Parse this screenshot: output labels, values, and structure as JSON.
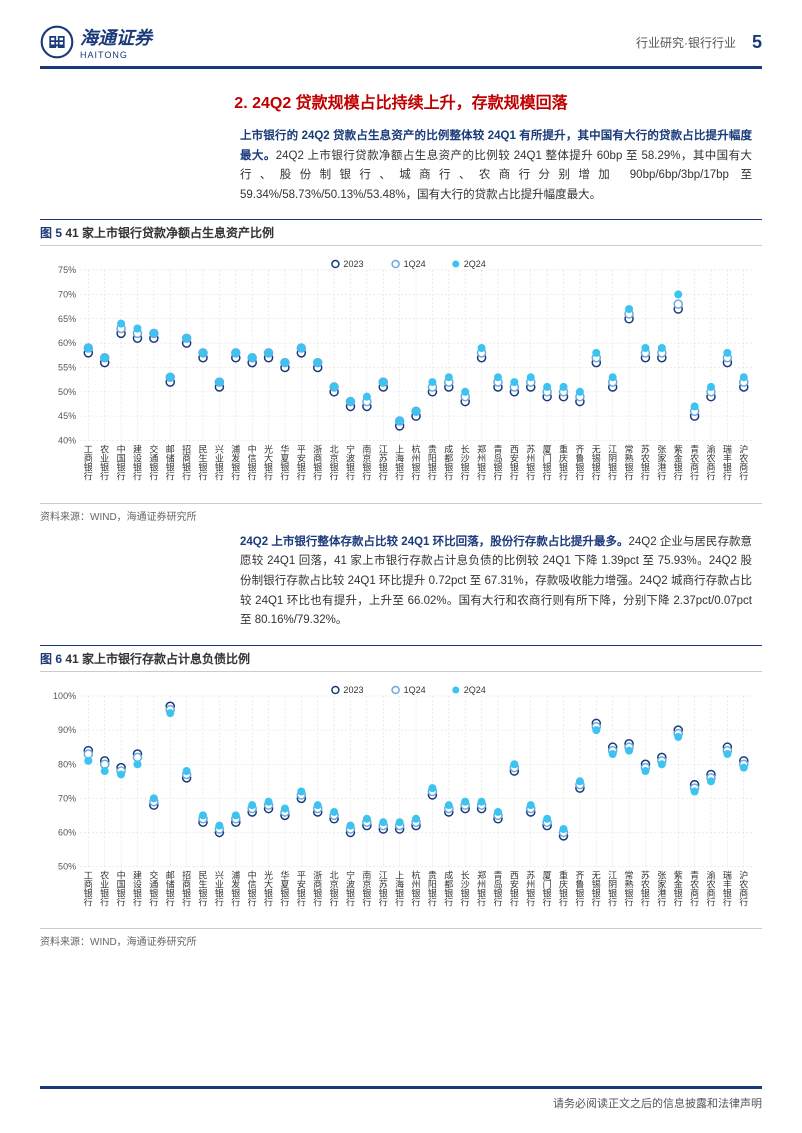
{
  "header": {
    "company_cn": "海通证券",
    "company_en": "HAITONG",
    "meta": "行业研究·银行行业",
    "page_number": "5"
  },
  "section_title": "2. 24Q2 贷款规模占比持续上升，存款规模回落",
  "para1": {
    "lead": "上市银行的 24Q2 贷款占生息资产的比例整体较 24Q1 有所提升，其中国有大行的贷款占比提升幅度最大。",
    "rest": "24Q2 上市银行贷款净额占生息资产的比例较 24Q1 整体提升 60bp 至 58.29%，其中国有大行、股份制银行、城商行、农商行分别增加 90bp/6bp/3bp/17bp 至 59.34%/58.73%/50.13%/53.48%，国有大行的贷款占比提升幅度最大。"
  },
  "para2": {
    "lead": "24Q2 上市银行整体存款占比较 24Q1 环比回落，股份行存款占比提升最多。",
    "rest": "24Q2 企业与居民存款意愿较 24Q1 回落，41 家上市银行存款占计息负债的比例较 24Q1 下降 1.39pct 至 75.93%。24Q2 股份制银行存款占比较 24Q1 环比提升 0.72pct 至 67.31%，存款吸收能力增强。24Q2 城商行存款占比较 24Q1 环比也有提升，上升至 66.02%。国有大行和农商行则有所下降，分别下降 2.37pct/0.07pct 至 80.16%/79.32%。"
  },
  "chart5": {
    "title_prefix": "图 5",
    "title": "41 家上市银行贷款净额占生息资产比例",
    "source": "资料来源：WIND，海通证券研究所",
    "type": "scatter",
    "legend": [
      "2023",
      "1Q24",
      "2Q24"
    ],
    "series_colors": {
      "2023": "#1a3a7a",
      "1Q24": "#6aa9e0",
      "2Q24": "#3dc3f0"
    },
    "marker_style": {
      "2023": "circle-open",
      "1Q24": "circle-open",
      "2Q24": "circle"
    },
    "marker_size": 4,
    "ylim": [
      40,
      75
    ],
    "ytick_step": 5,
    "ytick_format": "percent",
    "grid_color": "#d9d9d9",
    "background_color": "#ffffff",
    "axis_font_size": 9,
    "x_label_orientation": "vertical",
    "categories": [
      "工商银行",
      "农业银行",
      "中国银行",
      "建设银行",
      "交通银行",
      "邮储银行",
      "招商银行",
      "民生银行",
      "兴业银行",
      "浦发银行",
      "中信银行",
      "光大银行",
      "华夏银行",
      "平安银行",
      "浙商银行",
      "北京银行",
      "宁波银行",
      "南京银行",
      "江苏银行",
      "上海银行",
      "杭州银行",
      "贵阳银行",
      "成都银行",
      "长沙银行",
      "郑州银行",
      "青岛银行",
      "西安银行",
      "苏州银行",
      "厦门银行",
      "重庆银行",
      "齐鲁银行",
      "无锡银行",
      "江阴银行",
      "常熟银行",
      "苏农银行",
      "张家港行",
      "紫金银行",
      "青农商行",
      "渝农商行",
      "瑞丰银行",
      "沪农商行"
    ],
    "data_2023": [
      58,
      56,
      62,
      61,
      61,
      52,
      60,
      57,
      51,
      57,
      56,
      57,
      55,
      58,
      55,
      50,
      47,
      47,
      51,
      43,
      45,
      50,
      51,
      48,
      57,
      51,
      50,
      51,
      49,
      49,
      48,
      56,
      51,
      65,
      57,
      57,
      67,
      45,
      49,
      56,
      51
    ],
    "data_1Q24": [
      59,
      57,
      63,
      62,
      62,
      53,
      61,
      58,
      52,
      58,
      57,
      58,
      56,
      59,
      56,
      51,
      48,
      48,
      52,
      44,
      46,
      51,
      52,
      49,
      58,
      52,
      51,
      52,
      50,
      50,
      49,
      57,
      52,
      66,
      58,
      58,
      68,
      46,
      50,
      57,
      52
    ],
    "data_2Q24": [
      59,
      57,
      64,
      63,
      62,
      53,
      61,
      58,
      52,
      58,
      57,
      58,
      56,
      59,
      56,
      51,
      48,
      49,
      52,
      44,
      46,
      52,
      53,
      50,
      59,
      53,
      52,
      53,
      51,
      51,
      50,
      58,
      53,
      67,
      59,
      59,
      70,
      47,
      51,
      58,
      53
    ]
  },
  "chart6": {
    "title_prefix": "图 6",
    "title": "41 家上市银行存款占计息负债比例",
    "source": "资料来源：WIND，海通证券研究所",
    "type": "scatter",
    "legend": [
      "2023",
      "1Q24",
      "2Q24"
    ],
    "series_colors": {
      "2023": "#1a3a7a",
      "1Q24": "#6aa9e0",
      "2Q24": "#3dc3f0"
    },
    "marker_style": {
      "2023": "circle-open",
      "1Q24": "circle-open",
      "2Q24": "circle"
    },
    "marker_size": 4,
    "ylim": [
      50,
      100
    ],
    "ytick_step": 10,
    "ytick_format": "percent",
    "grid_color": "#d9d9d9",
    "background_color": "#ffffff",
    "axis_font_size": 9,
    "x_label_orientation": "vertical",
    "categories": [
      "工商银行",
      "农业银行",
      "中国银行",
      "建设银行",
      "交通银行",
      "邮储银行",
      "招商银行",
      "民生银行",
      "兴业银行",
      "浦发银行",
      "中信银行",
      "光大银行",
      "华夏银行",
      "平安银行",
      "浙商银行",
      "北京银行",
      "宁波银行",
      "南京银行",
      "江苏银行",
      "上海银行",
      "杭州银行",
      "贵阳银行",
      "成都银行",
      "长沙银行",
      "郑州银行",
      "青岛银行",
      "西安银行",
      "苏州银行",
      "厦门银行",
      "重庆银行",
      "齐鲁银行",
      "无锡银行",
      "江阴银行",
      "常熟银行",
      "苏农银行",
      "张家港行",
      "紫金银行",
      "青农商行",
      "渝农商行",
      "瑞丰银行",
      "沪农商行"
    ],
    "data_2023": [
      84,
      81,
      79,
      83,
      68,
      97,
      76,
      63,
      60,
      63,
      66,
      67,
      65,
      70,
      66,
      64,
      60,
      62,
      61,
      61,
      62,
      71,
      66,
      67,
      67,
      64,
      78,
      66,
      62,
      59,
      73,
      92,
      85,
      86,
      80,
      82,
      90,
      74,
      77,
      85,
      81
    ],
    "data_1Q24": [
      83,
      80,
      78,
      82,
      69,
      96,
      77,
      64,
      61,
      64,
      67,
      68,
      66,
      71,
      67,
      65,
      61,
      63,
      62,
      62,
      63,
      72,
      67,
      68,
      68,
      65,
      79,
      67,
      63,
      60,
      74,
      91,
      84,
      85,
      79,
      81,
      89,
      73,
      76,
      84,
      80
    ],
    "data_2Q24": [
      81,
      78,
      77,
      80,
      70,
      95,
      78,
      65,
      62,
      65,
      68,
      69,
      67,
      72,
      68,
      66,
      62,
      64,
      63,
      63,
      64,
      73,
      68,
      69,
      69,
      66,
      80,
      68,
      64,
      61,
      75,
      90,
      83,
      84,
      78,
      80,
      88,
      72,
      75,
      83,
      79
    ]
  },
  "footer_text": "请务必阅读正文之后的信息披露和法律声明"
}
